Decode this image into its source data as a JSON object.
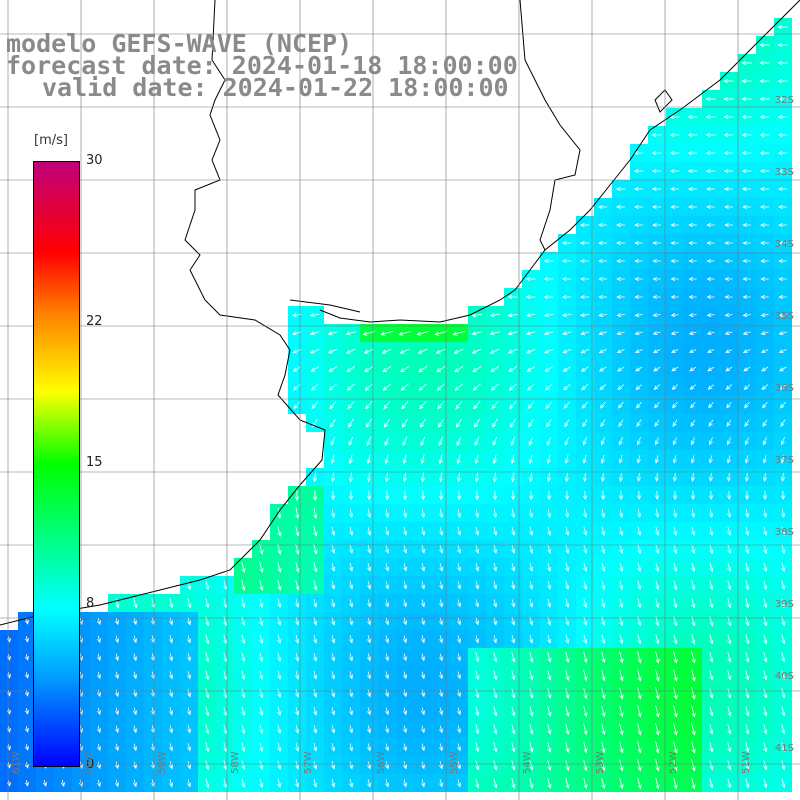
{
  "title": {
    "line1": "modelo GEFS-WAVE (NCEP)",
    "line2": "forecast date: 2024-01-18 18:00:00",
    "line3": "valid date: 2024-01-22 18:00:00"
  },
  "colorbar": {
    "unit": "[m/s]",
    "ticks": [
      "30",
      "22",
      "15",
      "8",
      "0"
    ],
    "values": [
      30,
      22,
      15,
      8,
      0
    ],
    "range": [
      0,
      30
    ]
  },
  "lat_labels": [
    "32S",
    "33S",
    "34S",
    "35S",
    "36S",
    "37S",
    "38S",
    "39S",
    "40S",
    "41S"
  ],
  "lon_labels": [
    "61W",
    "60W",
    "59W",
    "58W",
    "57W",
    "56W",
    "55W",
    "54W",
    "53W",
    "52W",
    "51W"
  ],
  "colors": {
    "land": "#ffffff",
    "coast": "#000000",
    "grid": "#777777",
    "arrow": "#ffffff",
    "title": "#8a8a8a"
  }
}
